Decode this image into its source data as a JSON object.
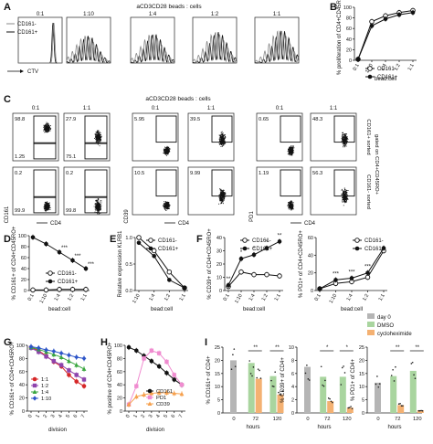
{
  "panel_letters": [
    "A",
    "B",
    "C",
    "D",
    "E",
    "F",
    "G",
    "H",
    "I"
  ],
  "panelA": {
    "title": "aCD3CD28 beads : cells",
    "ratios": [
      "0:1",
      "1:10",
      "1:4",
      "1:2",
      "1:1"
    ],
    "legend": [
      "CD161-",
      "CD161+"
    ],
    "xlabel": "CTV"
  },
  "panelC": {
    "title": "aCD3CD28 beads : cells",
    "ratios": [
      "0:1",
      "1:1",
      "0:1",
      "1:1",
      "0:1",
      "1:1"
    ],
    "side_labels": [
      "gated on CD4+CD45RO+",
      "CD161+ sorted",
      "CD161- sorted"
    ],
    "ylabels": [
      "CD161",
      "CD39",
      "PD1"
    ],
    "xlabel": "CD4",
    "quads": [
      {
        "top": "98.8",
        "bottom": "1.25"
      },
      {
        "top": "27.9",
        "bottom": "75.1"
      },
      {
        "top": "5.95",
        "bottom": ""
      },
      {
        "top": "39.5",
        "bottom": ""
      },
      {
        "top": "0.65",
        "bottom": ""
      },
      {
        "top": "48.3",
        "bottom": ""
      },
      {
        "top": "0.2",
        "bottom": "99.9"
      },
      {
        "top": "0.2",
        "bottom": "99.8"
      },
      {
        "top": "10.5",
        "bottom": ""
      },
      {
        "top": "9.99",
        "bottom": ""
      },
      {
        "top": "1.19",
        "bottom": ""
      },
      {
        "top": "56.3",
        "bottom": ""
      }
    ]
  },
  "stars": {
    "three": "***",
    "two": "**",
    "one": "*"
  },
  "chart_data": [
    {
      "panel": "B",
      "type": "line",
      "ylabel": "% proliferation of CD4+CD45RO+",
      "xlabel": "bead:cell",
      "categories": [
        "0:1",
        "1:10",
        "1:4",
        "1:2",
        "1:1"
      ],
      "ylim": [
        0,
        100
      ],
      "yticks": [
        "0",
        "20",
        "40",
        "60",
        "80",
        "100"
      ],
      "series": [
        {
          "name": "CD161-",
          "values": [
            2,
            73,
            84,
            90,
            94
          ]
        },
        {
          "name": "CD161+",
          "values": [
            2,
            65,
            78,
            86,
            90
          ]
        }
      ]
    },
    {
      "panel": "D",
      "type": "line",
      "ylabel": "% CD161+ of CD4+CD45RO+",
      "xlabel": "bead:cell",
      "categories": [
        "0:1",
        "1:10",
        "1:4",
        "1:2",
        "1:1"
      ],
      "ylim": [
        0,
        100
      ],
      "yticks": [
        "0",
        "20",
        "40",
        "60",
        "80",
        "100"
      ],
      "series": [
        {
          "name": "CD161-",
          "values": [
            1,
            1,
            2,
            2,
            2
          ]
        },
        {
          "name": "CD161+",
          "values": [
            97,
            85,
            70,
            55,
            40
          ]
        }
      ]
    },
    {
      "panel": "E",
      "type": "line",
      "ylabel": "Relative expression KLRB1",
      "xlabel": "bead:cell",
      "categories": [
        "1:10",
        "1:4",
        "1:2",
        "1:1"
      ],
      "ylim": [
        0,
        1.0
      ],
      "yticks": [
        "0.0",
        "0.5",
        "1.0"
      ],
      "series": [
        {
          "name": "CD161-",
          "values": [
            1.0,
            0.75,
            0.35,
            0.05
          ]
        },
        {
          "name": "CD161+",
          "values": [
            0.9,
            0.65,
            0.2,
            0.05
          ]
        }
      ]
    },
    {
      "panel": "F1",
      "type": "line",
      "ylabel": "% CD39+ of CD4+CD45RO+",
      "xlabel": "bead:cell",
      "categories": [
        "0:1",
        "1:10",
        "1:4",
        "1:2",
        "1:1"
      ],
      "ylim": [
        0,
        40
      ],
      "yticks": [
        "0",
        "10",
        "20",
        "30",
        "40"
      ],
      "series": [
        {
          "name": "CD161-",
          "values": [
            3,
            14,
            12,
            12,
            11
          ]
        },
        {
          "name": "CD161+",
          "values": [
            4,
            24,
            27,
            32,
            37
          ]
        }
      ]
    },
    {
      "panel": "F2",
      "type": "line",
      "ylabel": "% PD1+ of CD4+CD45RO+",
      "xlabel": "bead:cell",
      "categories": [
        "0:1",
        "1:10",
        "1:4",
        "1:2",
        "1:1"
      ],
      "ylim": [
        0,
        60
      ],
      "yticks": [
        "0",
        "20",
        "40",
        "60"
      ],
      "series": [
        {
          "name": "CD161-",
          "values": [
            2,
            8,
            10,
            15,
            45
          ]
        },
        {
          "name": "CD161+",
          "values": [
            2,
            12,
            14,
            20,
            48
          ]
        }
      ]
    },
    {
      "panel": "G",
      "type": "line",
      "ylabel": "% CD161+ of CD4+CD45RO+",
      "xlabel": "division",
      "categories": [
        "0",
        "1",
        "2",
        "3",
        "4",
        "5",
        "6",
        "7"
      ],
      "ylim": [
        0,
        100
      ],
      "yticks": [
        "0",
        "20",
        "40",
        "60",
        "80",
        "100"
      ],
      "series": [
        {
          "name": "1:1",
          "values": [
            97,
            92,
            84,
            75,
            68,
            55,
            45,
            38
          ]
        },
        {
          "name": "1:2",
          "values": [
            96,
            90,
            83,
            76,
            70,
            62,
            55,
            48
          ]
        },
        {
          "name": "1:4",
          "values": [
            97,
            94,
            90,
            86,
            82,
            76,
            70,
            64
          ]
        },
        {
          "name": "1:10",
          "values": [
            98,
            96,
            93,
            91,
            88,
            85,
            82,
            80
          ]
        }
      ]
    },
    {
      "panel": "H",
      "type": "line",
      "ylabel": "% positive of CD4+CD45RO+",
      "xlabel": "division",
      "categories": [
        "0",
        "1",
        "2",
        "3",
        "4",
        "5",
        "6",
        "7"
      ],
      "ylim": [
        0,
        100
      ],
      "yticks": [
        "0",
        "20",
        "40",
        "60",
        "80",
        "100"
      ],
      "series": [
        {
          "name": "CD161",
          "values": [
            97,
            92,
            84,
            76,
            68,
            58,
            48,
            40
          ]
        },
        {
          "name": "PD1",
          "values": [
            10,
            38,
            80,
            92,
            88,
            75,
            55,
            40
          ]
        },
        {
          "name": "CD39",
          "values": [
            10,
            22,
            25,
            27,
            28,
            28,
            27,
            26
          ]
        }
      ]
    },
    {
      "panel": "I1",
      "type": "bar",
      "ylabel": "% CD161+ of CD4+",
      "xlabel": "hours",
      "categories": [
        "0",
        "72",
        "120"
      ],
      "ylim": [
        0,
        25
      ],
      "yticks": [
        "0",
        "5",
        "10",
        "15",
        "20",
        "25"
      ],
      "series": [
        {
          "name": "day 0",
          "values": [
            20,
            null,
            null
          ]
        },
        {
          "name": "DMSO",
          "values": [
            null,
            19,
            14
          ]
        },
        {
          "name": "cycloheximide",
          "values": [
            null,
            13,
            7
          ]
        }
      ]
    },
    {
      "panel": "I2",
      "type": "bar",
      "ylabel": "% CD39+ of CD4+",
      "xlabel": "hours",
      "categories": [
        "0",
        "72",
        "120"
      ],
      "ylim": [
        0,
        10
      ],
      "yticks": [
        "0",
        "2",
        "4",
        "6",
        "8",
        "10"
      ],
      "series": [
        {
          "name": "day 0",
          "values": [
            7,
            null,
            null
          ]
        },
        {
          "name": "DMSO",
          "values": [
            null,
            5.5,
            5.5
          ]
        },
        {
          "name": "cycloheximide",
          "values": [
            null,
            1.8,
            0.8
          ]
        }
      ]
    },
    {
      "panel": "I3",
      "type": "bar",
      "ylabel": "% PD1+ of CD4+",
      "xlabel": "hours",
      "categories": [
        "0",
        "72",
        "120"
      ],
      "ylim": [
        0,
        25
      ],
      "yticks": [
        "0",
        "5",
        "10",
        "15",
        "20",
        "25"
      ],
      "series": [
        {
          "name": "day 0",
          "values": [
            11.5,
            null,
            null
          ]
        },
        {
          "name": "DMSO",
          "values": [
            null,
            14,
            16
          ]
        },
        {
          "name": "cycloheximide",
          "values": [
            null,
            3,
            1
          ]
        }
      ]
    }
  ],
  "legendI": [
    "day 0",
    "DMSO",
    "cycloheximide"
  ],
  "colors": {
    "grey": "#b5b5b5",
    "green": "#a9d59f",
    "orange": "#f4b172",
    "red": "#d62728",
    "purple": "#8e44ad",
    "green2": "#3aa640",
    "blue": "#2d55c8",
    "pink": "#f08cd0",
    "orange2": "#f6a04d",
    "black": "#111111"
  }
}
